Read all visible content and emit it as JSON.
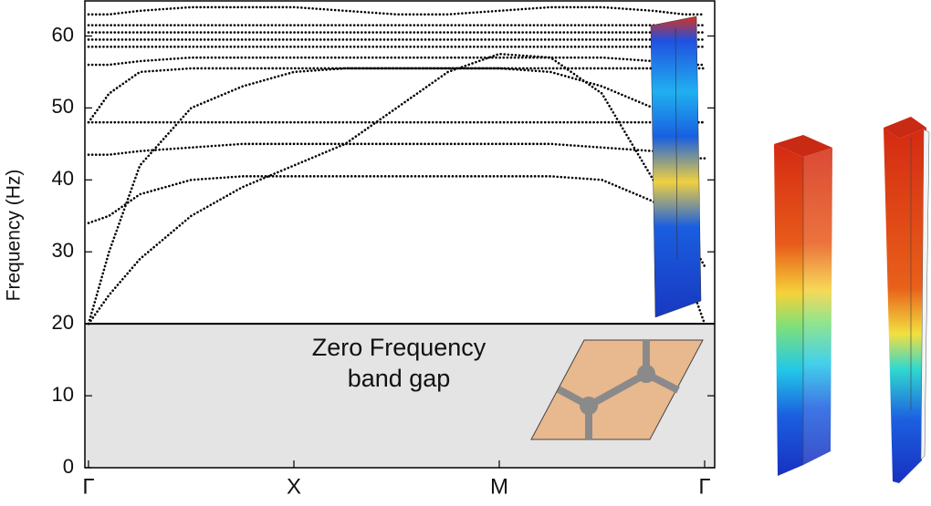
{
  "chart_data": {
    "type": "line",
    "y_label": "Frequency (Hz)",
    "annotation": [
      "Zero Frequency",
      "band gap"
    ],
    "band_gap_range": [
      0,
      20
    ],
    "band_gap_color": "#e4e4e4",
    "xlim": [
      0,
      3
    ],
    "xticks": [
      {
        "value": 0,
        "label": "Γ"
      },
      {
        "value": 1,
        "label": "X"
      },
      {
        "value": 2,
        "label": "M"
      },
      {
        "value": 3,
        "label": "Γ"
      }
    ],
    "ylim": [
      0,
      65
    ],
    "yticks": [
      0,
      10,
      20,
      30,
      40,
      50,
      60
    ],
    "x": [
      0,
      0.1,
      0.25,
      0.5,
      0.75,
      1,
      1.25,
      1.5,
      1.75,
      2,
      2.25,
      2.5,
      2.75,
      2.9,
      3
    ],
    "series": [
      {
        "color": "#000000",
        "values": [
          20,
          24,
          29,
          35,
          39,
          42,
          45,
          50,
          55,
          57.5,
          57,
          52,
          40,
          28,
          20
        ]
      },
      {
        "color": "#000000",
        "values": [
          34,
          35,
          38,
          40,
          40.5,
          40.5,
          40.5,
          40.5,
          40.5,
          40.5,
          40.5,
          40,
          37,
          33,
          28
        ]
      },
      {
        "color": "#000000",
        "values": [
          43.5,
          43.5,
          44,
          44.5,
          45,
          45,
          45,
          45,
          45,
          45,
          45,
          44.5,
          44,
          43,
          43
        ]
      },
      {
        "color": "#000000",
        "values": [
          48,
          48,
          48,
          48,
          48,
          48,
          48,
          48,
          48,
          48,
          48,
          48,
          48,
          48,
          48
        ]
      },
      {
        "color": "#000000",
        "values": [
          20,
          30,
          42,
          50,
          53,
          55,
          55.5,
          55.5,
          55.5,
          55.5,
          55,
          53,
          50,
          48,
          48
        ]
      },
      {
        "color": "#000000",
        "values": [
          48,
          52,
          55,
          55.5,
          55.5,
          55.5,
          55.5,
          55.5,
          55.5,
          55.5,
          55.5,
          55.5,
          55.5,
          55.5,
          55.5
        ]
      },
      {
        "color": "#000000",
        "values": [
          56,
          56,
          56.5,
          57,
          57,
          57,
          57,
          57,
          57,
          57,
          57,
          57,
          56.5,
          56,
          56
        ]
      },
      {
        "color": "#000000",
        "values": [
          58.5,
          58.5,
          58.5,
          58.5,
          58.5,
          58.5,
          58.5,
          58.5,
          58.5,
          58.5,
          58.5,
          58.5,
          58.5,
          58.5,
          58.5
        ]
      },
      {
        "color": "#000000",
        "values": [
          59.5,
          59.5,
          59.5,
          59.5,
          59.5,
          59.5,
          59.5,
          59.5,
          59.5,
          59.5,
          59.5,
          59.5,
          59.5,
          59.5,
          59.5
        ]
      },
      {
        "color": "#000000",
        "values": [
          60.5,
          60.5,
          60.5,
          60.5,
          60.5,
          60.5,
          60.5,
          60.5,
          60.5,
          60.5,
          60.5,
          60.5,
          60.5,
          60.5,
          60.5
        ]
      },
      {
        "color": "#000000",
        "values": [
          61.5,
          61.5,
          61.5,
          61.5,
          61.5,
          61.5,
          61.5,
          61.5,
          61.5,
          61.5,
          61.5,
          61.5,
          61.5,
          61.5,
          61.5
        ]
      },
      {
        "color": "#000000",
        "values": [
          63,
          63,
          63.5,
          64,
          64,
          64,
          63.5,
          63,
          63,
          63.5,
          64,
          64,
          63.5,
          63,
          63
        ]
      }
    ]
  }
}
